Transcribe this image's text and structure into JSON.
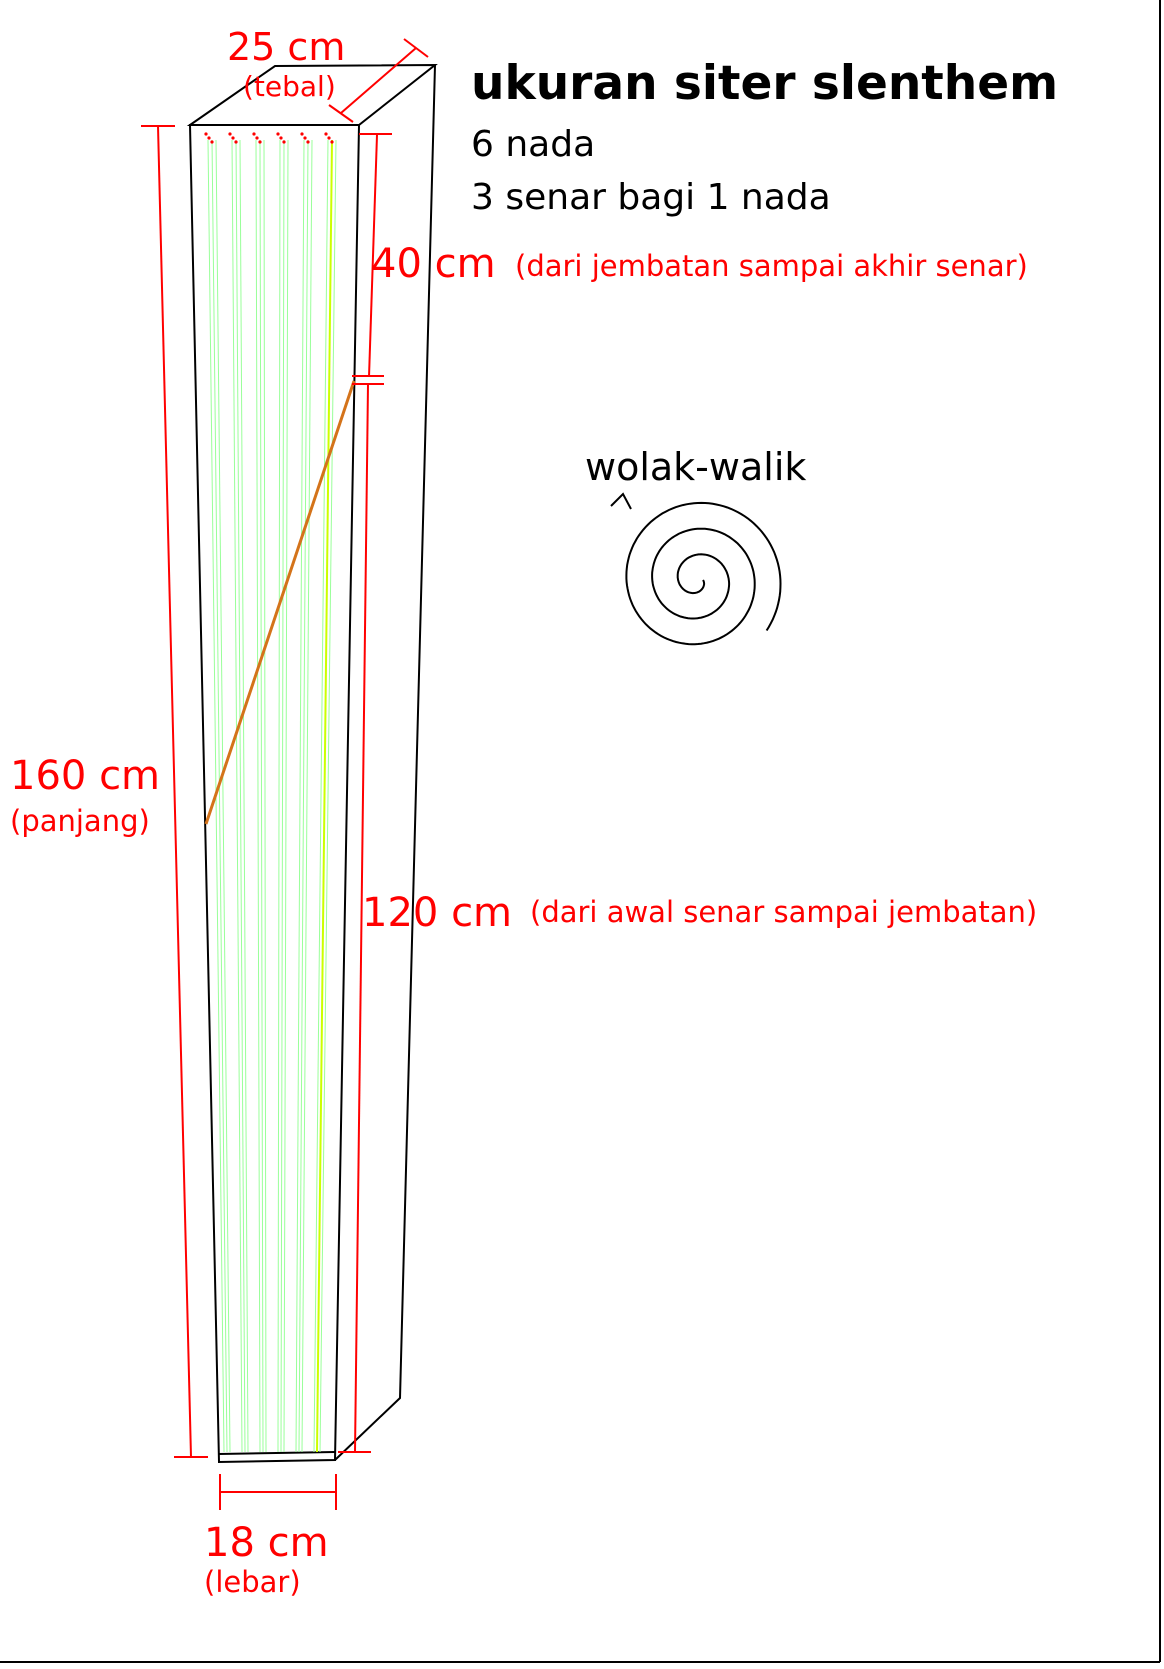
{
  "title": "ukuran siter slenthem",
  "info": {
    "notes": "6 nada",
    "strings_per_note": "3 senar bagi 1 nada"
  },
  "dimensions": {
    "thickness": {
      "value": "25 cm",
      "label": "(tebal)"
    },
    "length": {
      "value": "160 cm",
      "label": "(panjang)"
    },
    "width": {
      "value": "18 cm",
      "label": "(lebar)"
    },
    "bridge_to_end": {
      "value": "40 cm",
      "label": "(dari jembatan sampai akhir senar)"
    },
    "start_to_bridge": {
      "value": "120 cm",
      "label": "(dari awal senar sampai jembatan)"
    }
  },
  "spiral_label": "wolak-walik",
  "colors": {
    "dimension": "#ff0000",
    "outline": "#000000",
    "strings": "#99ff99",
    "strings_highlight": "#ccff00",
    "bridge": "#d4731a"
  }
}
